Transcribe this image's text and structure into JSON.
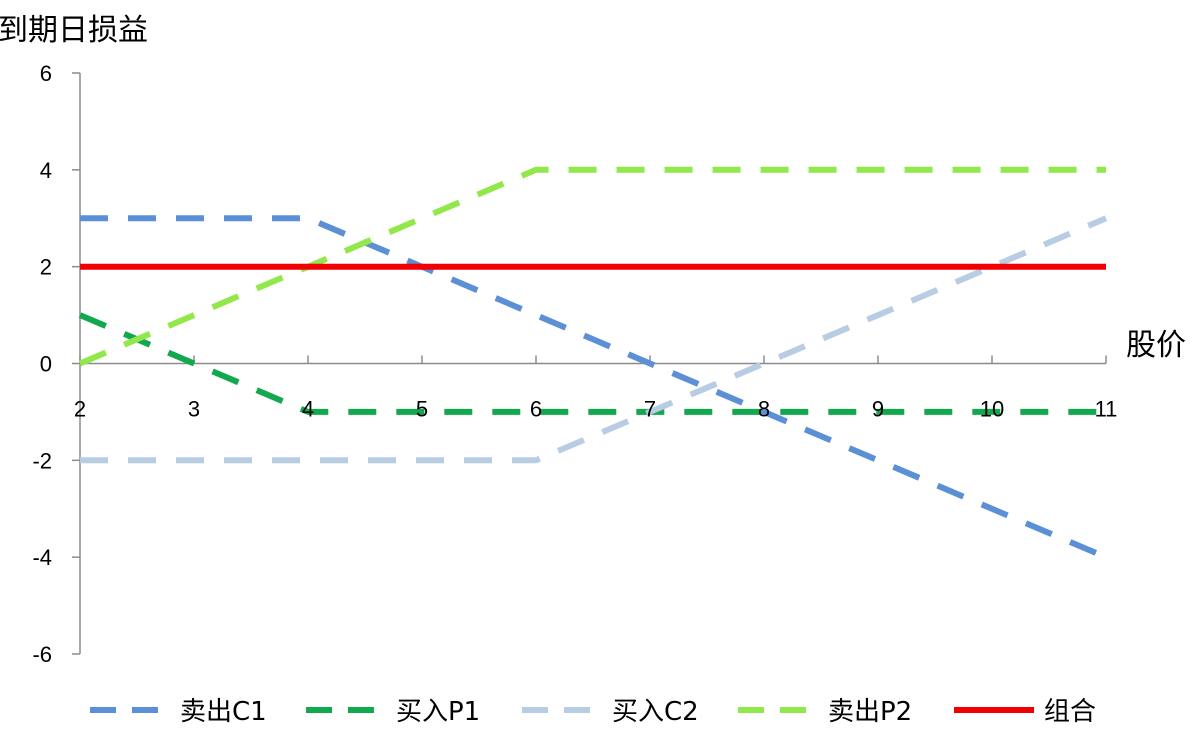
{
  "chart_data": {
    "type": "line",
    "ylabel": "到期日损益",
    "xlabel": "股价",
    "x": [
      2,
      3,
      4,
      5,
      6,
      7,
      8,
      9,
      10,
      11
    ],
    "x_tick_labels": [
      "2",
      "3",
      "4",
      "5",
      "6",
      "7",
      "8",
      "9",
      "10",
      "11"
    ],
    "ylim": [
      -6,
      6
    ],
    "y_ticks": [
      -6,
      -4,
      -2,
      0,
      2,
      4,
      6
    ],
    "y_tick_labels": [
      "-6",
      "-4",
      "-2",
      "0",
      "2",
      "4",
      "6"
    ],
    "grid": false,
    "legend_position": "bottom",
    "series": [
      {
        "name": "卖出C1",
        "color": "#5B8FD6",
        "style": "dashed",
        "values": [
          3,
          3,
          3,
          2,
          1,
          0,
          -1,
          -2,
          -3,
          -4
        ]
      },
      {
        "name": "买入P1",
        "color": "#12A84E",
        "style": "dashed",
        "values": [
          1,
          0,
          -1,
          -1,
          -1,
          -1,
          -1,
          -1,
          -1,
          -1
        ]
      },
      {
        "name": "买入C2",
        "color": "#B8CCE4",
        "style": "dashed",
        "values": [
          -2,
          -2,
          -2,
          -2,
          -2,
          -1,
          0,
          1,
          2,
          3
        ]
      },
      {
        "name": "卖出P2",
        "color": "#92E84A",
        "style": "dashed",
        "values": [
          0,
          1,
          2,
          3,
          4,
          4,
          4,
          4,
          4,
          4
        ]
      },
      {
        "name": "组合",
        "color": "#F00000",
        "style": "solid",
        "values": [
          2,
          2,
          2,
          2,
          2,
          2,
          2,
          2,
          2,
          2
        ]
      }
    ]
  }
}
